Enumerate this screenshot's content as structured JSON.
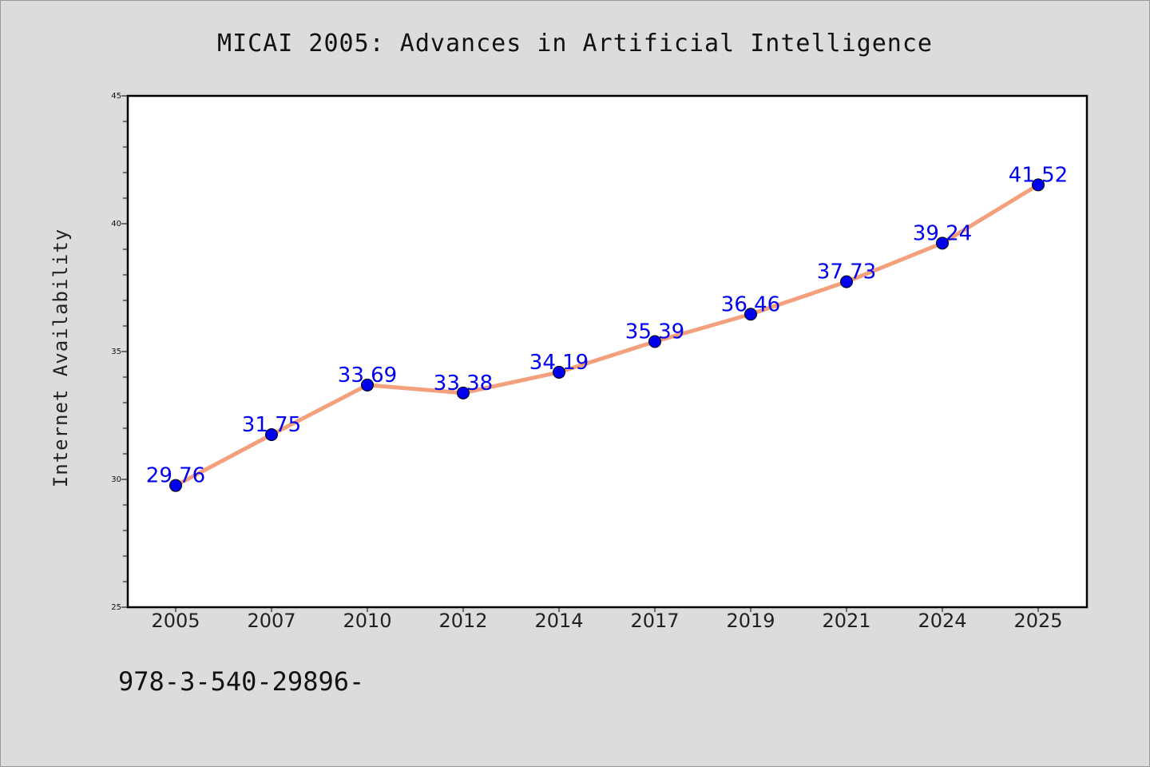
{
  "chart_data": {
    "type": "line",
    "title": "MICAI 2005: Advances in Artificial Intelligence",
    "xlabel": "",
    "ylabel": "Internet Availability",
    "categories": [
      "2005",
      "2007",
      "2010",
      "2012",
      "2014",
      "2017",
      "2019",
      "2021",
      "2024",
      "2025"
    ],
    "series": [
      {
        "values": [
          29.76,
          31.75,
          33.69,
          33.38,
          34.19,
          35.39,
          36.46,
          37.73,
          39.24,
          41.52
        ],
        "data_labels": [
          "29.76",
          "31.75",
          "33.69",
          "33.38",
          "34.19",
          "35.39",
          "36.46",
          "37.73",
          "39.24",
          "41.52"
        ]
      }
    ],
    "ylim": [
      25,
      45
    ],
    "yticks": [
      "25",
      "30",
      "35",
      "40",
      "45"
    ],
    "grid": false,
    "colors": {
      "line": "#f4a07c",
      "marker": "#0000ee",
      "label": "#0000ee",
      "background": "#dcdcdc",
      "plot_background": "#ffffff"
    }
  },
  "footer_text": "978-3-540-29896-"
}
